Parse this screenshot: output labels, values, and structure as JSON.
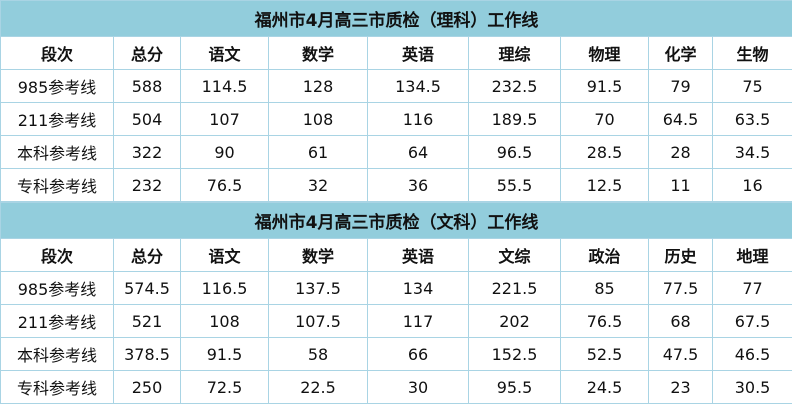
{
  "tables": [
    {
      "title": "福州市4月高三市质检（理科）工作线",
      "header": [
        "段次",
        "总分",
        "语文",
        "数学",
        "英语",
        "理综",
        "物理",
        "化学",
        "生物"
      ],
      "rows": [
        [
          "985参考线",
          588,
          114.5,
          128,
          134.5,
          232.5,
          91.5,
          79,
          75
        ],
        [
          "211参考线",
          504,
          107,
          108,
          116,
          189.5,
          70,
          64.5,
          63.5
        ],
        [
          "本科参考线",
          322,
          90,
          61,
          64,
          96.5,
          28.5,
          28,
          34.5
        ],
        [
          "专科参考线",
          232,
          76.5,
          32,
          36,
          55.5,
          12.5,
          11,
          16
        ]
      ]
    },
    {
      "title": "福州市4月高三市质检（文科）工作线",
      "header": [
        "段次",
        "总分",
        "语文",
        "数学",
        "英语",
        "文综",
        "政治",
        "历史",
        "地理"
      ],
      "rows": [
        [
          "985参考线",
          574.5,
          116.5,
          137.5,
          134,
          221.5,
          85,
          77.5,
          77
        ],
        [
          "211参考线",
          521,
          108,
          107.5,
          117,
          202,
          76.5,
          68,
          67.5
        ],
        [
          "本科参考线",
          378.5,
          91.5,
          58,
          66,
          152.5,
          52.5,
          47.5,
          46.5
        ],
        [
          "专科参考线",
          250,
          72.5,
          22.5,
          30,
          95.5,
          24.5,
          23,
          30.5
        ]
      ]
    }
  ]
}
